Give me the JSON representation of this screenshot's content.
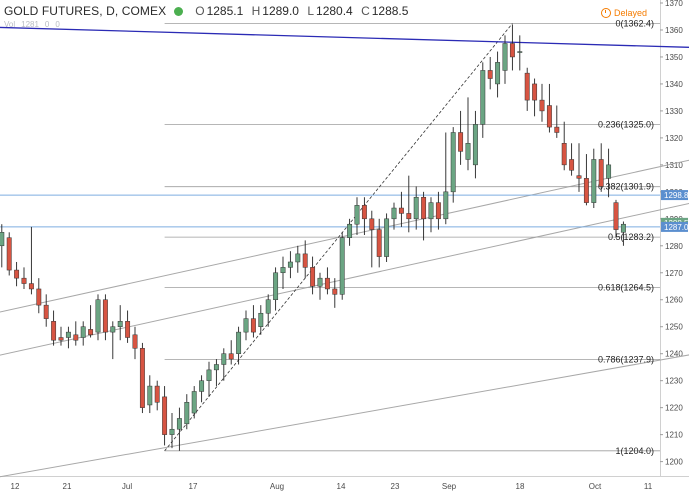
{
  "header": {
    "symbol": "GOLD FUTURES, D, COMEX",
    "ohlc": [
      {
        "label": "O",
        "value": "1285.1"
      },
      {
        "label": "H",
        "value": "1289.0"
      },
      {
        "label": "L",
        "value": "1280.4"
      },
      {
        "label": "C",
        "value": "1288.5"
      }
    ],
    "volume_row": [
      "Vol",
      "1281",
      "0",
      "0"
    ],
    "status": "Delayed",
    "status_color": "#f57c00",
    "symbol_dot_color": "#4caf50"
  },
  "chart_data": {
    "type": "candlestick",
    "title": "GOLD FUTURES, D, COMEX",
    "ylim": [
      1198,
      1370
    ],
    "x_ticks": [
      "12",
      "21",
      "Jul",
      "17",
      "Aug",
      "14",
      "23",
      "Sep",
      "18",
      "Oct",
      "11"
    ],
    "y_ticks": [
      1200,
      1210,
      1220,
      1230,
      1240,
      1250,
      1260,
      1270,
      1280,
      1290,
      1300,
      1310,
      1320,
      1330,
      1340,
      1350,
      1360,
      1370
    ],
    "colors": {
      "up": "#6ba583",
      "down": "#d75442",
      "wick": "#222222",
      "trendline": "#2b2bb5",
      "fib": "#9e9e9e",
      "hline": "#8fb3d9",
      "channel": "#a8a8a8"
    },
    "candles": [
      {
        "o": 1280,
        "h": 1288,
        "l": 1272,
        "c": 1285
      },
      {
        "o": 1283,
        "h": 1285,
        "l": 1269,
        "c": 1271
      },
      {
        "o": 1271,
        "h": 1274,
        "l": 1265,
        "c": 1268
      },
      {
        "o": 1268,
        "h": 1272,
        "l": 1264,
        "c": 1266
      },
      {
        "o": 1266,
        "h": 1287,
        "l": 1262,
        "c": 1264
      },
      {
        "o": 1264,
        "h": 1268,
        "l": 1255,
        "c": 1258
      },
      {
        "o": 1258,
        "h": 1262,
        "l": 1250,
        "c": 1253
      },
      {
        "o": 1252,
        "h": 1256,
        "l": 1243,
        "c": 1245
      },
      {
        "o": 1246,
        "h": 1250,
        "l": 1243,
        "c": 1245
      },
      {
        "o": 1246,
        "h": 1250,
        "l": 1242,
        "c": 1248
      },
      {
        "o": 1247,
        "h": 1252,
        "l": 1243,
        "c": 1245
      },
      {
        "o": 1246,
        "h": 1252,
        "l": 1243,
        "c": 1250
      },
      {
        "o": 1249,
        "h": 1258,
        "l": 1246,
        "c": 1247
      },
      {
        "o": 1248,
        "h": 1262,
        "l": 1245,
        "c": 1260
      },
      {
        "o": 1260,
        "h": 1262,
        "l": 1245,
        "c": 1248
      },
      {
        "o": 1248,
        "h": 1252,
        "l": 1238,
        "c": 1250
      },
      {
        "o": 1250,
        "h": 1258,
        "l": 1245,
        "c": 1252
      },
      {
        "o": 1252,
        "h": 1256,
        "l": 1244,
        "c": 1246
      },
      {
        "o": 1247,
        "h": 1250,
        "l": 1238,
        "c": 1242
      },
      {
        "o": 1242,
        "h": 1244,
        "l": 1218,
        "c": 1220
      },
      {
        "o": 1221,
        "h": 1232,
        "l": 1218,
        "c": 1228
      },
      {
        "o": 1228,
        "h": 1230,
        "l": 1219,
        "c": 1222
      },
      {
        "o": 1224,
        "h": 1228,
        "l": 1206,
        "c": 1210
      },
      {
        "o": 1210,
        "h": 1218,
        "l": 1205,
        "c": 1212
      },
      {
        "o": 1212,
        "h": 1220,
        "l": 1204,
        "c": 1216
      },
      {
        "o": 1214,
        "h": 1225,
        "l": 1212,
        "c": 1222
      },
      {
        "o": 1218,
        "h": 1228,
        "l": 1216,
        "c": 1226
      },
      {
        "o": 1226,
        "h": 1232,
        "l": 1222,
        "c": 1230
      },
      {
        "o": 1230,
        "h": 1237,
        "l": 1224,
        "c": 1234
      },
      {
        "o": 1234,
        "h": 1238,
        "l": 1228,
        "c": 1236
      },
      {
        "o": 1236,
        "h": 1242,
        "l": 1230,
        "c": 1240
      },
      {
        "o": 1240,
        "h": 1245,
        "l": 1236,
        "c": 1238
      },
      {
        "o": 1240,
        "h": 1250,
        "l": 1236,
        "c": 1248
      },
      {
        "o": 1248,
        "h": 1256,
        "l": 1245,
        "c": 1253
      },
      {
        "o": 1253,
        "h": 1258,
        "l": 1246,
        "c": 1248
      },
      {
        "o": 1250,
        "h": 1258,
        "l": 1247,
        "c": 1255
      },
      {
        "o": 1255,
        "h": 1262,
        "l": 1250,
        "c": 1260
      },
      {
        "o": 1260,
        "h": 1272,
        "l": 1256,
        "c": 1270
      },
      {
        "o": 1270,
        "h": 1276,
        "l": 1264,
        "c": 1272
      },
      {
        "o": 1272,
        "h": 1278,
        "l": 1268,
        "c": 1274
      },
      {
        "o": 1274,
        "h": 1280,
        "l": 1270,
        "c": 1277
      },
      {
        "o": 1277,
        "h": 1282,
        "l": 1268,
        "c": 1272
      },
      {
        "o": 1272,
        "h": 1276,
        "l": 1262,
        "c": 1265
      },
      {
        "o": 1265,
        "h": 1270,
        "l": 1260,
        "c": 1268
      },
      {
        "o": 1268,
        "h": 1272,
        "l": 1262,
        "c": 1264
      },
      {
        "o": 1264,
        "h": 1268,
        "l": 1257,
        "c": 1262
      },
      {
        "o": 1262,
        "h": 1285,
        "l": 1260,
        "c": 1283
      },
      {
        "o": 1283,
        "h": 1290,
        "l": 1280,
        "c": 1288
      },
      {
        "o": 1288,
        "h": 1298,
        "l": 1284,
        "c": 1295
      },
      {
        "o": 1295,
        "h": 1298,
        "l": 1284,
        "c": 1290
      },
      {
        "o": 1290,
        "h": 1293,
        "l": 1272,
        "c": 1286
      },
      {
        "o": 1286,
        "h": 1290,
        "l": 1272,
        "c": 1276
      },
      {
        "o": 1276,
        "h": 1292,
        "l": 1274,
        "c": 1290
      },
      {
        "o": 1290,
        "h": 1296,
        "l": 1286,
        "c": 1294
      },
      {
        "o": 1294,
        "h": 1300,
        "l": 1287,
        "c": 1292
      },
      {
        "o": 1292,
        "h": 1306,
        "l": 1285,
        "c": 1290
      },
      {
        "o": 1290,
        "h": 1302,
        "l": 1286,
        "c": 1298
      },
      {
        "o": 1298,
        "h": 1300,
        "l": 1282,
        "c": 1290
      },
      {
        "o": 1290,
        "h": 1298,
        "l": 1285,
        "c": 1296
      },
      {
        "o": 1296,
        "h": 1300,
        "l": 1286,
        "c": 1290
      },
      {
        "o": 1290,
        "h": 1322,
        "l": 1288,
        "c": 1300
      },
      {
        "o": 1300,
        "h": 1324,
        "l": 1296,
        "c": 1322
      },
      {
        "o": 1322,
        "h": 1330,
        "l": 1310,
        "c": 1315
      },
      {
        "o": 1312,
        "h": 1335,
        "l": 1308,
        "c": 1318
      },
      {
        "o": 1310,
        "h": 1330,
        "l": 1305,
        "c": 1325
      },
      {
        "o": 1325,
        "h": 1348,
        "l": 1320,
        "c": 1345
      },
      {
        "o": 1345,
        "h": 1350,
        "l": 1338,
        "c": 1342
      },
      {
        "o": 1340,
        "h": 1352,
        "l": 1335,
        "c": 1348
      },
      {
        "o": 1345,
        "h": 1358,
        "l": 1340,
        "c": 1355
      },
      {
        "o": 1355,
        "h": 1362,
        "l": 1345,
        "c": 1350
      },
      {
        "o": 1352,
        "h": 1358,
        "l": 1345,
        "c": 1352
      },
      {
        "o": 1344,
        "h": 1346,
        "l": 1330,
        "c": 1334
      },
      {
        "o": 1340,
        "h": 1342,
        "l": 1328,
        "c": 1334
      },
      {
        "o": 1334,
        "h": 1340,
        "l": 1326,
        "c": 1330
      },
      {
        "o": 1332,
        "h": 1340,
        "l": 1322,
        "c": 1324
      },
      {
        "o": 1324,
        "h": 1332,
        "l": 1320,
        "c": 1322
      },
      {
        "o": 1318,
        "h": 1326,
        "l": 1308,
        "c": 1310
      },
      {
        "o": 1312,
        "h": 1318,
        "l": 1306,
        "c": 1308
      },
      {
        "o": 1306,
        "h": 1318,
        "l": 1300,
        "c": 1305
      },
      {
        "o": 1305,
        "h": 1314,
        "l": 1295,
        "c": 1296
      },
      {
        "o": 1296,
        "h": 1316,
        "l": 1294,
        "c": 1312
      },
      {
        "o": 1312,
        "h": 1318,
        "l": 1300,
        "c": 1302
      },
      {
        "o": 1305,
        "h": 1316,
        "l": 1298,
        "c": 1310
      },
      {
        "o": 1296,
        "h": 1297,
        "l": 1283,
        "c": 1286
      },
      {
        "o": 1285,
        "h": 1289,
        "l": 1280,
        "c": 1288
      }
    ],
    "price_tags": [
      {
        "value": 1298.8,
        "label": "1298.8",
        "color": "#5b8fcf"
      },
      {
        "value": 1288.5,
        "label": "1288.5",
        "color": "#6ba583"
      },
      {
        "value": 1287.0,
        "label": "1287.0",
        "color": "#5b8fcf"
      }
    ],
    "hlines": [
      {
        "value": 1298.8,
        "color": "#7eaee0"
      },
      {
        "value": 1287.0,
        "color": "#7eaee0"
      }
    ],
    "fib_levels": [
      {
        "ratio": "0",
        "value": 1362.4,
        "label": "0(1362.4)"
      },
      {
        "ratio": "0.236",
        "value": 1325.0,
        "label": "0.236(1325.0)"
      },
      {
        "ratio": "0.382",
        "value": 1301.9,
        "label": "0.382(1301.9)"
      },
      {
        "ratio": "0.5",
        "value": 1283.2,
        "label": "0.5(1283.2)"
      },
      {
        "ratio": "0.618",
        "value": 1264.5,
        "label": "0.618(1264.5)"
      },
      {
        "ratio": "0.786",
        "value": 1237.9,
        "label": "0.786(1237.9)"
      },
      {
        "ratio": "1",
        "value": 1204.0,
        "label": "1(1204.0)"
      }
    ],
    "fib_anchor": {
      "start_candle": 22,
      "start_price": 1204.0,
      "end_candle": 69,
      "end_price": 1362.4
    },
    "trendline": {
      "start_candle": -1,
      "start_price": 1361,
      "end_candle": 100,
      "end_price": 1353
    },
    "channel_lines": [
      {
        "start_candle": -1,
        "start_price": 1255,
        "end_candle": 100,
        "end_price": 1316
      },
      {
        "start_candle": -1,
        "start_price": 1239,
        "end_candle": 100,
        "end_price": 1300
      },
      {
        "start_candle": -1,
        "start_price": 1194,
        "end_candle": 100,
        "end_price": 1243
      }
    ]
  }
}
